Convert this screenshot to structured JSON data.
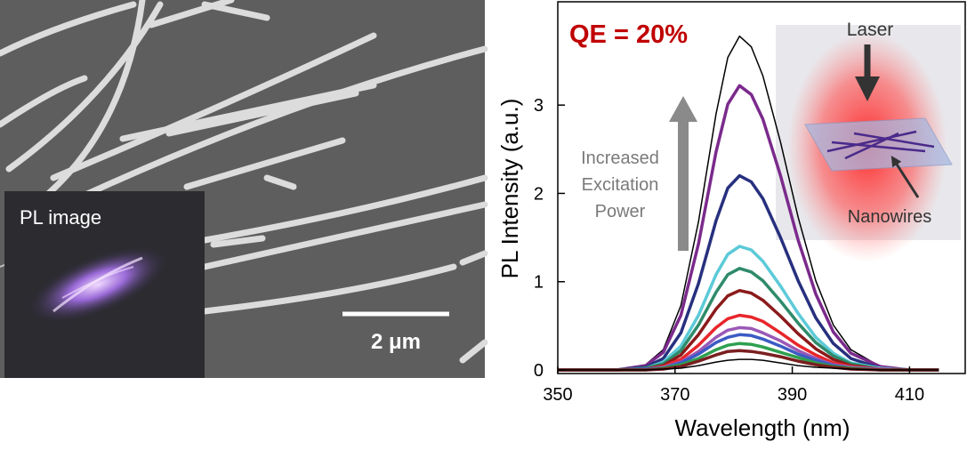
{
  "image_panel": {
    "inset_label": "PL image",
    "scale_bar_label": "2 μm"
  },
  "chart_data": {
    "type": "line",
    "x": [
      350,
      355,
      360,
      365,
      368,
      371,
      374,
      377,
      379,
      381,
      383,
      385,
      388,
      391,
      394,
      397,
      400,
      405,
      410,
      415
    ],
    "series": [
      {
        "color": "#000000",
        "values": [
          0,
          0,
          0,
          0.06,
          0.23,
          0.73,
          1.68,
          2.9,
          3.54,
          3.78,
          3.66,
          3.33,
          2.58,
          1.73,
          1.01,
          0.51,
          0.23,
          0.04,
          0,
          0
        ]
      },
      {
        "color": "#7b2a8c",
        "values": [
          0,
          0,
          0,
          0.05,
          0.2,
          0.62,
          1.43,
          2.47,
          3.01,
          3.22,
          3.12,
          2.84,
          2.2,
          1.47,
          0.86,
          0.43,
          0.19,
          0.04,
          0,
          0
        ]
      },
      {
        "color": "#27307e",
        "values": [
          0,
          0,
          0,
          0.03,
          0.13,
          0.42,
          0.98,
          1.69,
          2.06,
          2.2,
          2.13,
          1.94,
          1.5,
          1.01,
          0.59,
          0.3,
          0.13,
          0.02,
          0,
          0
        ]
      },
      {
        "color": "#5ccad8",
        "values": [
          0,
          0,
          0,
          0.02,
          0.09,
          0.27,
          0.62,
          1.08,
          1.31,
          1.4,
          1.36,
          1.23,
          0.95,
          0.64,
          0.37,
          0.19,
          0.08,
          0.02,
          0,
          0
        ]
      },
      {
        "color": "#2e8b6a",
        "values": [
          0,
          0,
          0,
          0.02,
          0.07,
          0.22,
          0.51,
          0.88,
          1.08,
          1.15,
          1.11,
          1.01,
          0.78,
          0.53,
          0.31,
          0.16,
          0.07,
          0.01,
          0,
          0
        ]
      },
      {
        "color": "#8b1a1a",
        "values": [
          0,
          0,
          0,
          0.01,
          0.05,
          0.17,
          0.4,
          0.69,
          0.84,
          0.9,
          0.87,
          0.79,
          0.61,
          0.41,
          0.24,
          0.12,
          0.05,
          0.01,
          0,
          0
        ]
      },
      {
        "color": "#e8262b",
        "values": [
          0,
          0,
          0,
          0.01,
          0.04,
          0.12,
          0.28,
          0.48,
          0.58,
          0.62,
          0.6,
          0.55,
          0.42,
          0.28,
          0.17,
          0.08,
          0.04,
          0.01,
          0,
          0
        ]
      },
      {
        "color": "#9b59b6",
        "values": [
          0,
          0,
          0,
          0.01,
          0.03,
          0.09,
          0.21,
          0.37,
          0.45,
          0.48,
          0.47,
          0.42,
          0.33,
          0.22,
          0.13,
          0.06,
          0.03,
          0.01,
          0,
          0
        ]
      },
      {
        "color": "#3b5bc4",
        "values": [
          0,
          0,
          0,
          0.01,
          0.02,
          0.08,
          0.18,
          0.31,
          0.37,
          0.4,
          0.39,
          0.35,
          0.27,
          0.18,
          0.11,
          0.05,
          0.02,
          0,
          0,
          0
        ]
      },
      {
        "color": "#2ea04f",
        "values": [
          0,
          0,
          0,
          0,
          0.02,
          0.06,
          0.13,
          0.23,
          0.28,
          0.3,
          0.29,
          0.26,
          0.2,
          0.14,
          0.08,
          0.04,
          0.02,
          0,
          0,
          0
        ]
      },
      {
        "color": "#7a1f1f",
        "values": [
          0,
          0,
          0,
          0,
          0.01,
          0.04,
          0.1,
          0.17,
          0.21,
          0.22,
          0.21,
          0.19,
          0.15,
          0.1,
          0.06,
          0.03,
          0.01,
          0,
          0,
          0
        ]
      },
      {
        "color": "#000000",
        "values": [
          0,
          0,
          0,
          0,
          0.01,
          0.02,
          0.05,
          0.09,
          0.11,
          0.12,
          0.12,
          0.11,
          0.08,
          0.05,
          0.03,
          0.02,
          0.01,
          0,
          0,
          0
        ]
      }
    ],
    "xlim": [
      350,
      419.5
    ],
    "xticks": [
      350,
      370,
      390,
      410
    ],
    "ylim": [
      -0.04,
      4.17
    ],
    "yticks": [
      0,
      1,
      2,
      3
    ],
    "x_label": "Wavelength (nm)",
    "y_label": "PL Intensity (a.u.)",
    "annotation": "QE = 20%",
    "arrow_text": [
      "Increased",
      "Excitation",
      "Power"
    ],
    "inset_labels": [
      "Laser",
      "Nanowires"
    ]
  }
}
